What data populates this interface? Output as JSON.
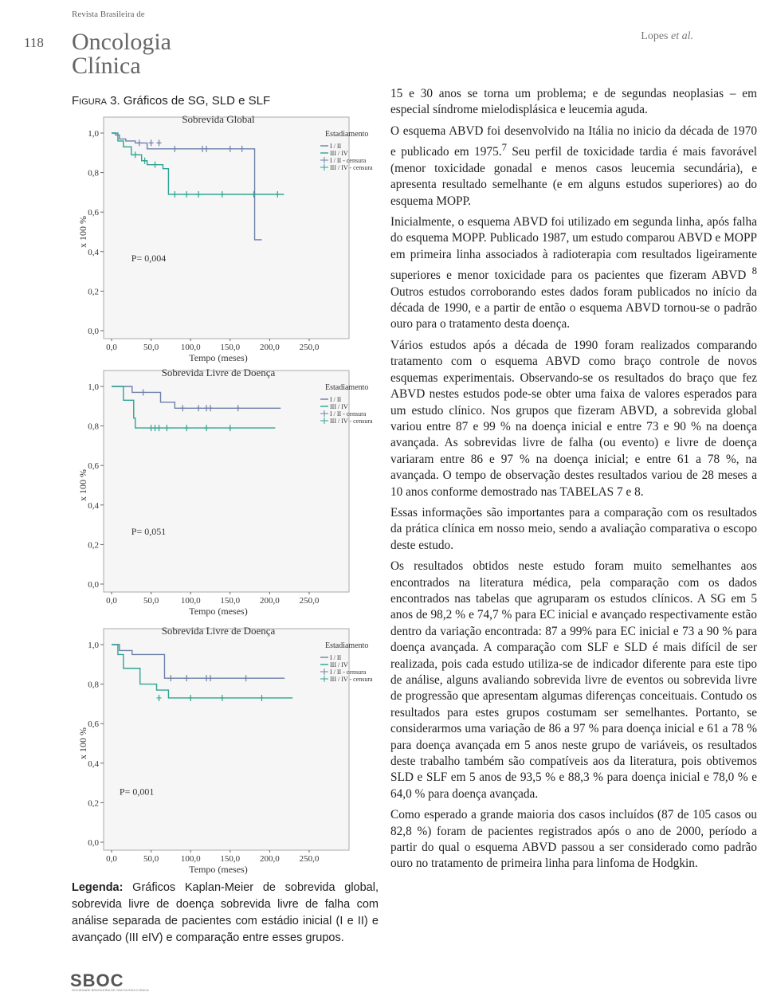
{
  "header": {
    "page_number": "118",
    "journal_small": "Revista Brasileira de",
    "journal_line1": "Oncologia",
    "journal_line2": "Clínica",
    "author": "Lopes",
    "author_etal": "et al."
  },
  "figure": {
    "label": "Figura 3.",
    "title": "Gráficos de SG, SLD e SLF",
    "legend_label": "Legenda:",
    "legend_text": "Gráficos Kaplan-Meier de sobrevida global, sobrevida livre de doença sobrevida livre de falha com análise separada de pacientes com estádio inicial (I e II) e avançado (III eIV) e comparação entre esses grupos."
  },
  "chart_data": [
    {
      "type": "line",
      "title": "Sobrevida Global",
      "xlabel": "Tempo (meses)",
      "ylabel": "x 100 %",
      "annotation": "P= 0,004",
      "legend_title": "Estadiamento",
      "xlim": [
        0,
        250
      ],
      "ylim": [
        0,
        1
      ],
      "xticks": [
        {
          "value": 0,
          "label": "0,0"
        },
        {
          "value": 50,
          "label": "50,0"
        },
        {
          "value": 100,
          "label": "100,0"
        },
        {
          "value": 150,
          "label": "150,0"
        },
        {
          "value": 200,
          "label": "200,0"
        },
        {
          "value": 250,
          "label": "250,0"
        }
      ],
      "yticks": [
        {
          "value": 0,
          "label": "0,0"
        },
        {
          "value": 0.2,
          "label": "0,2"
        },
        {
          "value": 0.4,
          "label": "0,4"
        },
        {
          "value": 0.6,
          "label": "0,6"
        },
        {
          "value": 0.8,
          "label": "0,8"
        },
        {
          "value": 1,
          "label": "1,0"
        }
      ],
      "series": [
        {
          "name": "I / II",
          "color": "#6e7fa8",
          "drawstyle": "steps-post",
          "x": [
            0,
            5,
            10,
            18,
            30,
            45,
            181,
            190
          ],
          "values": [
            1,
            0.99,
            0.97,
            0.96,
            0.95,
            0.92,
            0.46,
            0.46
          ]
        },
        {
          "name": "III / IV",
          "color": "#2fa391",
          "drawstyle": "steps-post",
          "x": [
            0,
            8,
            15,
            25,
            38,
            45,
            65,
            72,
            218
          ],
          "values": [
            1,
            0.96,
            0.93,
            0.89,
            0.86,
            0.84,
            0.82,
            0.69,
            0.69
          ]
        },
        {
          "name": "I / II - censura",
          "color": "#6e7fa8",
          "marker": "+",
          "x": [
            35,
            50,
            60,
            80,
            115,
            120,
            150,
            165
          ],
          "values": [
            0.95,
            0.95,
            0.95,
            0.92,
            0.92,
            0.92,
            0.92,
            0.92
          ]
        },
        {
          "name": "III / IV - censura",
          "color": "#2fa391",
          "marker": "+",
          "x": [
            30,
            42,
            55,
            80,
            95,
            110,
            140,
            180,
            210
          ],
          "values": [
            0.89,
            0.86,
            0.84,
            0.69,
            0.69,
            0.69,
            0.69,
            0.69,
            0.69
          ]
        }
      ]
    },
    {
      "type": "line",
      "title": "Sobrevida Livre de Doença",
      "xlabel": "Tempo (meses)",
      "ylabel": "x 100 %",
      "annotation": "P= 0,051",
      "legend_title": "Estadiamento",
      "xlim": [
        0,
        250
      ],
      "ylim": [
        0,
        1
      ],
      "xticks": [
        {
          "value": 0,
          "label": "0,0"
        },
        {
          "value": 50,
          "label": "50,0"
        },
        {
          "value": 100,
          "label": "100,0"
        },
        {
          "value": 150,
          "label": "150,0"
        },
        {
          "value": 200,
          "label": "200,0"
        },
        {
          "value": 250,
          "label": "250,0"
        }
      ],
      "yticks": [
        {
          "value": 0,
          "label": "0,0"
        },
        {
          "value": 0.2,
          "label": "0,2"
        },
        {
          "value": 0.4,
          "label": "0,4"
        },
        {
          "value": 0.6,
          "label": "0,6"
        },
        {
          "value": 0.8,
          "label": "0,8"
        },
        {
          "value": 1,
          "label": "1,0"
        }
      ],
      "series": [
        {
          "name": "I / II",
          "color": "#6e7fa8",
          "drawstyle": "steps-post",
          "x": [
            0,
            26,
            62,
            80,
            214
          ],
          "values": [
            1,
            0.97,
            0.92,
            0.89,
            0.89
          ]
        },
        {
          "name": "III / IV",
          "color": "#2fa391",
          "drawstyle": "steps-post",
          "x": [
            0,
            15,
            28,
            30,
            207
          ],
          "values": [
            1,
            0.93,
            0.84,
            0.79,
            0.79
          ]
        },
        {
          "name": "I / II - censura",
          "color": "#6e7fa8",
          "marker": "+",
          "x": [
            40,
            90,
            110,
            120,
            125,
            160
          ],
          "values": [
            0.97,
            0.89,
            0.89,
            0.89,
            0.89,
            0.89
          ]
        },
        {
          "name": "III / IV - censura",
          "color": "#2fa391",
          "marker": "+",
          "x": [
            50,
            55,
            60,
            70,
            95,
            120,
            150
          ],
          "values": [
            0.79,
            0.79,
            0.79,
            0.79,
            0.79,
            0.79,
            0.79
          ]
        }
      ]
    },
    {
      "type": "line",
      "title": "Sobrevida Livre de Doença",
      "xlabel": "Tempo (meses)",
      "ylabel": "x 100 %",
      "annotation": "P= 0,001",
      "legend_title": "Estadiamento",
      "xlim": [
        0,
        250
      ],
      "ylim": [
        0,
        1
      ],
      "xticks": [
        {
          "value": 0,
          "label": "0,0"
        },
        {
          "value": 50,
          "label": "50,0"
        },
        {
          "value": 100,
          "label": "100,0"
        },
        {
          "value": 150,
          "label": "150,0"
        },
        {
          "value": 200,
          "label": "200,0"
        },
        {
          "value": 250,
          "label": "250,0"
        }
      ],
      "yticks": [
        {
          "value": 0,
          "label": "0,0"
        },
        {
          "value": 0.2,
          "label": "0,2"
        },
        {
          "value": 0.4,
          "label": "0,4"
        },
        {
          "value": 0.6,
          "label": "0,6"
        },
        {
          "value": 0.8,
          "label": "0,8"
        },
        {
          "value": 1,
          "label": "1,0"
        }
      ],
      "series": [
        {
          "name": "I / II",
          "color": "#6e7fa8",
          "drawstyle": "steps-post",
          "x": [
            0,
            10,
            26,
            67,
            219
          ],
          "values": [
            1,
            0.97,
            0.95,
            0.83,
            0.83
          ]
        },
        {
          "name": "III / IV",
          "color": "#2fa391",
          "drawstyle": "steps-post",
          "x": [
            0,
            8,
            15,
            36,
            57,
            72,
            229
          ],
          "values": [
            1,
            0.95,
            0.88,
            0.8,
            0.77,
            0.73,
            0.73
          ]
        },
        {
          "name": "I / II - censura",
          "color": "#6e7fa8",
          "marker": "+",
          "x": [
            75,
            95,
            120,
            125,
            170
          ],
          "values": [
            0.83,
            0.83,
            0.83,
            0.83,
            0.83
          ]
        },
        {
          "name": "III / IV - censura",
          "color": "#2fa391",
          "marker": "+",
          "x": [
            60,
            100,
            140,
            190
          ],
          "values": [
            0.73,
            0.73,
            0.73,
            0.73
          ]
        }
      ]
    }
  ],
  "body": {
    "paragraphs": [
      [
        "15 e 30 anos se torna um problema; e de segundas neoplasias – em especial síndrome mielodisplásica e leucemia aguda."
      ],
      [
        "O esquema ABVD foi desenvolvido na Itália no inicio da década de 1970 e publicado em 1975.",
        {
          "sup": "7"
        },
        " Seu perfil de toxicidade tardia é mais favorável (menor toxicidade gonadal e menos casos leucemia secundária), e apresenta resultado semelhante (e em alguns estudos superiores) ao do esquema MOPP."
      ],
      [
        "Inicialmente, o esquema ABVD foi utilizado em segunda linha, após falha do esquema MOPP. Publicado 1987, um estudo comparou ABVD e MOPP em primeira linha associados à radioterapia com resultados ligeiramente superiores e menor toxicidade para os pacientes que fizeram ABVD ",
        {
          "sup": "8"
        },
        " Outros estudos corroborando estes dados foram publicados no início da década de 1990, e a partir de então o esquema ABVD tornou-se o padrão ouro para o tratamento desta doença."
      ],
      [
        "Vários estudos após a década de 1990 foram realizados comparando tratamento com o esquema ABVD como braço controle de novos esquemas experimentais. Observando-se os resultados do braço que fez ABVD nestes estudos pode-se obter uma faixa de valores esperados para um estudo clínico. Nos grupos que fizeram ABVD, a sobrevida global variou entre 87 e 99 % na doença inicial e entre 73 e 90 % na doença avançada. As sobrevidas livre de falha (ou evento) e livre de doença variaram entre 86 e 97 % na doença inicial; e entre 61 a 78 %, na avançada. O tempo de observação destes resultados variou de 28 meses a 10 anos conforme demostrado nas TABELAS 7 e 8."
      ],
      [
        "Essas informações são importantes para a comparação com os resultados da prática clínica em nosso meio, sendo a avaliação comparativa o escopo deste estudo."
      ],
      [
        "Os resultados obtidos neste estudo foram muito semelhantes aos encontrados na literatura médica, pela comparação com os dados encontrados nas tabelas que agruparam os estudos clínicos. A SG em 5 anos de 98,2 % e 74,7 % para EC inicial e avançado respectivamente estão dentro da variação encontrada: 87 a 99% para EC inicial e 73 a 90 % para doença avançada. A comparação com SLF e SLD é mais difícil de ser realizada, pois cada estudo utiliza-se de indicador diferente para este tipo de análise, alguns avaliando sobrevida livre de eventos ou sobrevida livre de progressão que apresentam algumas diferenças conceituais. Contudo os resultados para estes grupos costumam ser semelhantes. Portanto, se considerarmos uma variação de 86 a 97 % para doença inicial e 61 a 78 % para doença avançada em 5 anos neste grupo de variáveis, os resultados deste trabalho também são compatíveis aos da literatura, pois obtivemos SLD e SLF em 5 anos de 93,5 % e 88,3 % para doença inicial e 78,0 % e 64,0 % para doença avançada."
      ],
      [
        "Como esperado a grande maioria dos casos incluídos (87 de 105 casos ou 82,8 %) foram de pacientes registrados após o ano de 2000, período a partir do qual o esquema ABVD passou a ser considerado como padrão ouro no tratamento de primeira linha para linfoma de Hodgkin."
      ]
    ]
  },
  "footer": {
    "logo": "SBOC",
    "logo_sub": "SOCIEDADE BRASILEIRA DE ONCOLOGIA CLÍNICA"
  }
}
